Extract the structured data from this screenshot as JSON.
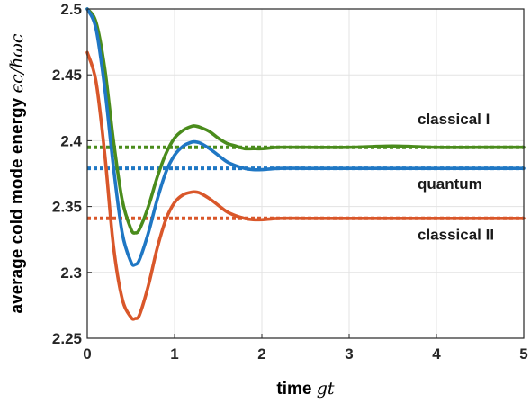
{
  "chart_data": {
    "type": "line",
    "xlabel": {
      "text": "time ",
      "math": "gt"
    },
    "ylabel": {
      "text": "average cold mode energy ",
      "math": "ϵc/ℏωc"
    },
    "xlim": [
      0,
      5
    ],
    "ylim": [
      2.25,
      2.5
    ],
    "xticks": [
      "0",
      "1",
      "2",
      "3",
      "4",
      "5"
    ],
    "yticks": [
      "2.25",
      "2.3",
      "2.35",
      "2.4",
      "2.45",
      "2.5"
    ],
    "grid": true,
    "series": [
      {
        "name": "classical I",
        "color": "#4a8c1c",
        "steady_state": 2.395,
        "x": [
          0,
          0.1,
          0.2,
          0.3,
          0.4,
          0.5,
          0.55,
          0.6,
          0.7,
          0.8,
          0.9,
          1.0,
          1.1,
          1.2,
          1.25,
          1.3,
          1.4,
          1.5,
          1.6,
          1.7,
          1.8,
          1.9,
          2.0,
          2.2,
          2.5,
          3.0,
          3.5,
          4.0,
          4.5,
          5.0
        ],
        "y": [
          2.5,
          2.49,
          2.455,
          2.4,
          2.355,
          2.333,
          2.33,
          2.333,
          2.35,
          2.372,
          2.39,
          2.402,
          2.408,
          2.411,
          2.411,
          2.41,
          2.407,
          2.402,
          2.398,
          2.396,
          2.394,
          2.394,
          2.394,
          2.395,
          2.395,
          2.395,
          2.396,
          2.395,
          2.395,
          2.395
        ]
      },
      {
        "name": "quantum",
        "color": "#1f77c4",
        "steady_state": 2.379,
        "x": [
          0,
          0.1,
          0.2,
          0.3,
          0.4,
          0.5,
          0.55,
          0.6,
          0.7,
          0.8,
          0.9,
          1.0,
          1.1,
          1.2,
          1.25,
          1.3,
          1.4,
          1.5,
          1.6,
          1.7,
          1.8,
          1.9,
          2.0,
          2.2,
          2.5,
          3.0,
          3.5,
          4.0,
          4.5,
          5.0
        ],
        "y": [
          2.5,
          2.485,
          2.44,
          2.38,
          2.33,
          2.308,
          2.306,
          2.31,
          2.33,
          2.355,
          2.376,
          2.389,
          2.396,
          2.399,
          2.399,
          2.398,
          2.394,
          2.389,
          2.384,
          2.381,
          2.379,
          2.378,
          2.378,
          2.379,
          2.379,
          2.379,
          2.379,
          2.379,
          2.379,
          2.379
        ]
      },
      {
        "name": "classical II",
        "color": "#d9572a",
        "steady_state": 2.341,
        "x": [
          0,
          0.1,
          0.2,
          0.3,
          0.4,
          0.5,
          0.55,
          0.6,
          0.7,
          0.8,
          0.9,
          1.0,
          1.1,
          1.2,
          1.25,
          1.3,
          1.4,
          1.5,
          1.6,
          1.7,
          1.8,
          1.9,
          2.0,
          2.2,
          2.5,
          3.0,
          3.5,
          4.0,
          4.5,
          5.0
        ],
        "y": [
          2.467,
          2.445,
          2.39,
          2.32,
          2.28,
          2.266,
          2.265,
          2.268,
          2.29,
          2.318,
          2.34,
          2.353,
          2.359,
          2.361,
          2.361,
          2.36,
          2.356,
          2.351,
          2.346,
          2.343,
          2.341,
          2.34,
          2.34,
          2.341,
          2.341,
          2.341,
          2.341,
          2.341,
          2.341,
          2.341
        ]
      }
    ],
    "annotations": [
      "classical I",
      "quantum",
      "classical II"
    ]
  }
}
